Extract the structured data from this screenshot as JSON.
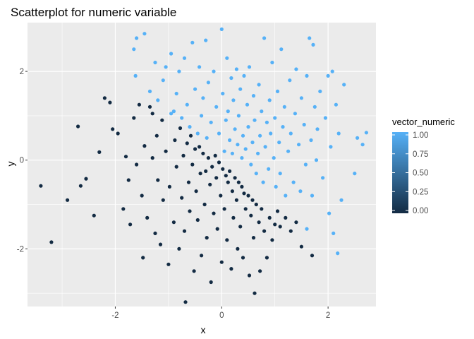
{
  "chart_data": {
    "type": "scatter",
    "title": "Scatterplot for numeric variable",
    "xlabel": "x",
    "ylabel": "y",
    "xlim": [
      -3.65,
      2.9
    ],
    "ylim": [
      -3.3,
      3.1
    ],
    "x_ticks": [
      -2,
      0,
      2
    ],
    "x_tick_labels": [
      "-2",
      "0",
      "2"
    ],
    "y_ticks": [
      -2,
      0,
      2
    ],
    "y_tick_labels": [
      "-2",
      "0",
      "2"
    ],
    "grid": true,
    "panel_background": "#ebebeb",
    "legend": {
      "title": "vector_numeric",
      "position": "right",
      "breaks": [
        0.0,
        0.25,
        0.5,
        0.75,
        1.0
      ],
      "labels": [
        "0.00",
        "0.25",
        "0.50",
        "0.75",
        "1.00"
      ],
      "low_color": "#132b43",
      "high_color": "#56b1f7"
    },
    "color_rule": "vector_numeric = 1 if x + y > 0, else 0",
    "points": [
      [
        -3.4,
        -0.58
      ],
      [
        -3.2,
        -1.85
      ],
      [
        -2.9,
        -0.9
      ],
      [
        -2.7,
        0.76
      ],
      [
        -2.65,
        -0.58
      ],
      [
        -2.55,
        -0.42
      ],
      [
        -2.4,
        -1.25
      ],
      [
        -2.3,
        0.18
      ],
      [
        -2.2,
        1.4
      ],
      [
        -2.1,
        1.3
      ],
      [
        -2.05,
        0.7
      ],
      [
        -1.95,
        0.6
      ],
      [
        -1.85,
        -1.1
      ],
      [
        -1.8,
        0.08
      ],
      [
        -1.75,
        -0.45
      ],
      [
        -1.72,
        -1.45
      ],
      [
        -1.65,
        0.95
      ],
      [
        -1.6,
        -0.1
      ],
      [
        -1.55,
        1.25
      ],
      [
        -1.5,
        -0.8
      ],
      [
        -1.48,
        -2.2
      ],
      [
        -1.45,
        0.32
      ],
      [
        -1.4,
        -1.3
      ],
      [
        -1.35,
        1.2
      ],
      [
        -1.3,
        0.05
      ],
      [
        -1.25,
        -1.65
      ],
      [
        -1.22,
        0.55
      ],
      [
        -1.2,
        -0.45
      ],
      [
        -1.15,
        -1.9
      ],
      [
        -1.12,
        0.9
      ],
      [
        -1.1,
        -0.9
      ],
      [
        -1.05,
        0.2
      ],
      [
        -1.0,
        -2.35
      ],
      [
        -0.98,
        -0.6
      ],
      [
        -0.95,
        1.05
      ],
      [
        -0.9,
        -1.4
      ],
      [
        -0.88,
        0.45
      ],
      [
        -0.85,
        -0.15
      ],
      [
        -0.8,
        -2.0
      ],
      [
        -0.78,
        0.72
      ],
      [
        -0.75,
        -0.85
      ],
      [
        -0.72,
        0.1
      ],
      [
        -0.7,
        -1.6
      ],
      [
        -0.68,
        -3.2
      ],
      [
        -0.65,
        0.38
      ],
      [
        -0.62,
        -0.5
      ],
      [
        -0.6,
        -1.15
      ],
      [
        -0.58,
        0.55
      ],
      [
        -0.55,
        -0.1
      ],
      [
        -0.52,
        -2.5
      ],
      [
        -0.5,
        0.25
      ],
      [
        -0.48,
        -0.7
      ],
      [
        -0.45,
        -1.35
      ],
      [
        -0.42,
        0.3
      ],
      [
        -0.4,
        -0.3
      ],
      [
        -0.38,
        -2.15
      ],
      [
        -0.35,
        0.15
      ],
      [
        -0.32,
        -1.0
      ],
      [
        -0.3,
        -0.25
      ],
      [
        -0.28,
        -1.75
      ],
      [
        -0.25,
        0.05
      ],
      [
        -0.22,
        -0.55
      ],
      [
        -0.2,
        -2.75
      ],
      [
        -0.18,
        -0.15
      ],
      [
        -0.15,
        -1.2
      ],
      [
        -0.12,
        0.1
      ],
      [
        -0.1,
        -0.4
      ],
      [
        -0.08,
        -1.55
      ],
      [
        -0.05,
        -0.05
      ],
      [
        -0.02,
        -0.8
      ],
      [
        0.0,
        -2.3
      ],
      [
        0.02,
        -0.2
      ],
      [
        0.05,
        -1.1
      ],
      [
        0.08,
        -0.35
      ],
      [
        0.1,
        -1.8
      ],
      [
        0.12,
        -0.5
      ],
      [
        0.15,
        -0.25
      ],
      [
        0.18,
        -2.45
      ],
      [
        0.2,
        -0.7
      ],
      [
        0.22,
        -1.3
      ],
      [
        0.25,
        -0.4
      ],
      [
        0.28,
        -0.9
      ],
      [
        0.3,
        -2.0
      ],
      [
        0.32,
        -0.5
      ],
      [
        0.35,
        -1.5
      ],
      [
        0.38,
        -0.6
      ],
      [
        0.4,
        -2.2
      ],
      [
        0.42,
        -0.75
      ],
      [
        0.45,
        -1.1
      ],
      [
        0.5,
        -0.8
      ],
      [
        0.52,
        -2.6
      ],
      [
        0.55,
        -1.25
      ],
      [
        0.58,
        -0.9
      ],
      [
        0.6,
        -1.75
      ],
      [
        0.62,
        -3.0
      ],
      [
        0.65,
        -1.0
      ],
      [
        0.7,
        -1.4
      ],
      [
        0.72,
        -2.5
      ],
      [
        0.75,
        -1.1
      ],
      [
        0.8,
        -1.6
      ],
      [
        0.85,
        -2.2
      ],
      [
        0.9,
        -1.3
      ],
      [
        0.95,
        -1.8
      ],
      [
        1.0,
        -1.45
      ],
      [
        1.05,
        -1.15
      ],
      [
        1.1,
        -1.5
      ],
      [
        1.2,
        -1.3
      ],
      [
        1.3,
        -1.6
      ],
      [
        1.4,
        -1.4
      ],
      [
        1.5,
        -1.95
      ],
      [
        1.6,
        -1.55
      ],
      [
        1.7,
        -2.15
      ],
      [
        -1.62,
        1.9
      ],
      [
        -1.65,
        2.5
      ],
      [
        -1.6,
        2.75
      ],
      [
        -1.45,
        2.85
      ],
      [
        -1.35,
        1.55
      ],
      [
        -1.3,
        1.05
      ],
      [
        -1.25,
        2.2
      ],
      [
        -1.2,
        1.35
      ],
      [
        -1.1,
        1.8
      ],
      [
        -1.05,
        2.1
      ],
      [
        -0.95,
        2.4
      ],
      [
        -0.9,
        1.1
      ],
      [
        -0.85,
        1.5
      ],
      [
        -0.8,
        2.0
      ],
      [
        -0.75,
        0.95
      ],
      [
        -0.7,
        2.3
      ],
      [
        -0.65,
        1.25
      ],
      [
        -0.6,
        0.75
      ],
      [
        -0.55,
        2.65
      ],
      [
        -0.5,
        1.6
      ],
      [
        -0.45,
        0.6
      ],
      [
        -0.42,
        2.1
      ],
      [
        -0.38,
        1.0
      ],
      [
        -0.35,
        1.4
      ],
      [
        -0.3,
        2.7
      ],
      [
        -0.28,
        0.5
      ],
      [
        -0.25,
        1.75
      ],
      [
        -0.2,
        0.85
      ],
      [
        -0.15,
        2.0
      ],
      [
        -0.1,
        1.2
      ],
      [
        -0.05,
        0.6
      ],
      [
        0.0,
        2.95
      ],
      [
        0.02,
        1.5
      ],
      [
        0.05,
        0.2
      ],
      [
        0.08,
        0.9
      ],
      [
        0.1,
        2.3
      ],
      [
        0.12,
        1.1
      ],
      [
        0.15,
        0.45
      ],
      [
        0.18,
        1.85
      ],
      [
        0.2,
        0.15
      ],
      [
        0.22,
        1.35
      ],
      [
        0.25,
        0.7
      ],
      [
        0.28,
        2.05
      ],
      [
        0.3,
        0.35
      ],
      [
        0.32,
        1.0
      ],
      [
        0.35,
        1.6
      ],
      [
        0.38,
        0.05
      ],
      [
        0.4,
        0.55
      ],
      [
        0.42,
        1.9
      ],
      [
        0.45,
        0.25
      ],
      [
        0.48,
        1.25
      ],
      [
        0.5,
        0.75
      ],
      [
        0.52,
        2.1
      ],
      [
        0.55,
        -0.1
      ],
      [
        0.58,
        0.4
      ],
      [
        0.6,
        1.45
      ],
      [
        0.62,
        0.9
      ],
      [
        0.65,
        -0.3
      ],
      [
        0.68,
        0.15
      ],
      [
        0.7,
        1.7
      ],
      [
        0.72,
        0.55
      ],
      [
        0.75,
        1.1
      ],
      [
        0.78,
        -0.5
      ],
      [
        0.8,
        2.75
      ],
      [
        0.82,
        0.3
      ],
      [
        0.85,
        0.85
      ],
      [
        0.88,
        -0.2
      ],
      [
        0.9,
        1.35
      ],
      [
        0.92,
        0.6
      ],
      [
        0.95,
        2.2
      ],
      [
        0.98,
        0.05
      ],
      [
        1.0,
        0.95
      ],
      [
        1.02,
        -0.6
      ],
      [
        1.05,
        1.55
      ],
      [
        1.08,
        0.4
      ],
      [
        1.1,
        -0.3
      ],
      [
        1.12,
        2.5
      ],
      [
        1.15,
        0.75
      ],
      [
        1.18,
        1.2
      ],
      [
        1.2,
        -0.8
      ],
      [
        1.25,
        0.2
      ],
      [
        1.28,
        1.8
      ],
      [
        1.3,
        0.6
      ],
      [
        1.35,
        -0.5
      ],
      [
        1.38,
        1.05
      ],
      [
        1.4,
        2.05
      ],
      [
        1.45,
        0.35
      ],
      [
        1.48,
        -0.7
      ],
      [
        1.5,
        1.4
      ],
      [
        1.55,
        0.8
      ],
      [
        1.58,
        -0.1
      ],
      [
        1.6,
        1.9
      ],
      [
        1.65,
        2.75
      ],
      [
        1.68,
        0.45
      ],
      [
        1.7,
        -0.8
      ],
      [
        1.72,
        2.6
      ],
      [
        1.75,
        1.2
      ],
      [
        1.78,
        0.0
      ],
      [
        1.8,
        0.7
      ],
      [
        1.85,
        1.55
      ],
      [
        1.9,
        -0.4
      ],
      [
        1.95,
        0.95
      ],
      [
        2.0,
        1.9
      ],
      [
        2.02,
        -1.2
      ],
      [
        2.05,
        0.3
      ],
      [
        2.08,
        2.0
      ],
      [
        2.1,
        -1.65
      ],
      [
        2.15,
        1.25
      ],
      [
        2.18,
        -2.1
      ],
      [
        2.2,
        0.6
      ],
      [
        2.25,
        -0.9
      ],
      [
        2.3,
        1.7
      ],
      [
        2.5,
        -0.3
      ],
      [
        2.55,
        0.5
      ],
      [
        2.65,
        0.35
      ],
      [
        2.72,
        0.62
      ]
    ]
  }
}
